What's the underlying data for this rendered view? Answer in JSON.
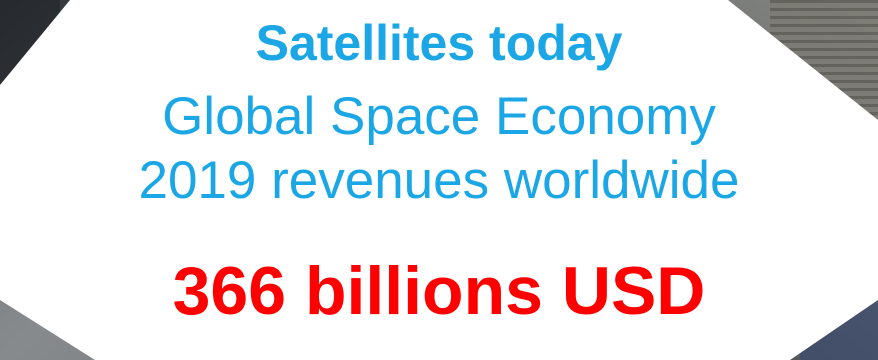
{
  "headline": {
    "title": "Satellites today",
    "subtitle_line1": "Global Space Economy",
    "subtitle_line2": "2019 revenues worldwide",
    "amount": "366 billions USD"
  },
  "colors": {
    "accent_blue": "#1ba6e6",
    "amount_red": "#ff0000",
    "panel_white": "#ffffff"
  },
  "background_icon": "satellite-photo-background"
}
